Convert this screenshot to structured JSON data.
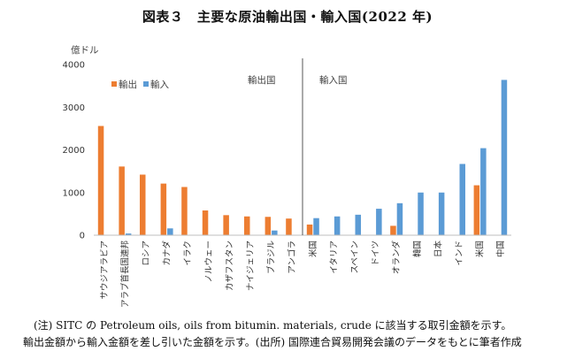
{
  "title": "図表３　主要な原油輸出国・輸入国(2022 年)",
  "chart_data": {
    "type": "bar",
    "ylabel": "億ドル",
    "ylim": [
      0,
      4000
    ],
    "yticks": [
      0,
      1000,
      2000,
      3000,
      4000
    ],
    "grid": false,
    "legend_position": "top-left",
    "categories": [
      "サウジアラビア",
      "アラブ首長国連邦",
      "ロシア",
      "カナダ",
      "イラク",
      "ノルウェー",
      "カザフスタン",
      "ナイジェリア",
      "ブラジル",
      "アンゴラ",
      "米国",
      "イタリア",
      "スペイン",
      "ドイツ",
      "オランダ",
      "韓国",
      "日本",
      "インド",
      "米国",
      "中国"
    ],
    "series": [
      {
        "name": "輸出",
        "color": "#ED7D31",
        "values": [
          2560,
          1610,
          1420,
          1210,
          1130,
          580,
          470,
          440,
          430,
          390,
          250,
          0,
          0,
          0,
          220,
          0,
          0,
          0,
          1170,
          0
        ]
      },
      {
        "name": "輸入",
        "color": "#5B9BD5",
        "values": [
          0,
          40,
          0,
          160,
          0,
          0,
          0,
          0,
          110,
          0,
          400,
          440,
          480,
          620,
          750,
          1000,
          1000,
          1670,
          2040,
          3640
        ]
      }
    ],
    "group_labels": {
      "left": "輸出国",
      "right": "輸入国"
    },
    "divider_after_index": 9
  },
  "notes": [
    "(注) SITC の Petroleum oils, oils from bitumin. materials, crude に該当する取引金額を示す。",
    "輸出金額から輸入金額を差し引いた金額を示す。(出所) 国際連合貿易開発会議のデータをもとに筆者作成"
  ]
}
